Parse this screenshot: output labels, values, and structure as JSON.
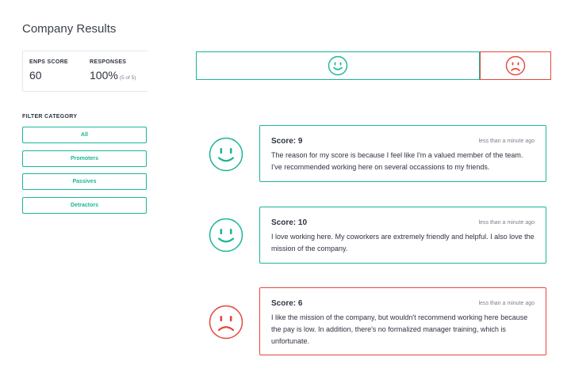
{
  "page": {
    "title": "Company Results"
  },
  "stats": {
    "enps_label": "ENPS SCORE",
    "enps_value": "60",
    "responses_label": "RESPONSES",
    "responses_value": "100%",
    "responses_sub": "(5 of 5)"
  },
  "filters": {
    "heading": "FILTER CATEGORY",
    "items": [
      "All",
      "Promoters",
      "Passives",
      "Detractors"
    ]
  },
  "summary": {
    "happy_share": 0.8,
    "sad_share": 0.2,
    "happy_icon": "smiley-face-icon",
    "sad_icon": "frown-face-icon"
  },
  "responses": [
    {
      "score_label": "Score: 9",
      "time": "less than a minute ago",
      "text": "The reason for my score is because I feel like I'm a valued member of the team. I've recommended working here on several occassions to my friends.",
      "sentiment": "happy"
    },
    {
      "score_label": "Score: 10",
      "time": "less than a minute ago",
      "text": "I love working here. My coworkers are extremely friendly and helpful. I also love the mission of the company.",
      "sentiment": "happy"
    },
    {
      "score_label": "Score: 6",
      "time": "less than a minute ago",
      "text": "I like the mission of the company, but wouldn't recommend working here because the pay is low. In addition, there's no formalized manager training, which is unfortunate.",
      "sentiment": "sad"
    }
  ],
  "colors": {
    "positive": "#1bb597",
    "negative": "#e5473b",
    "text": "#2e3340"
  }
}
